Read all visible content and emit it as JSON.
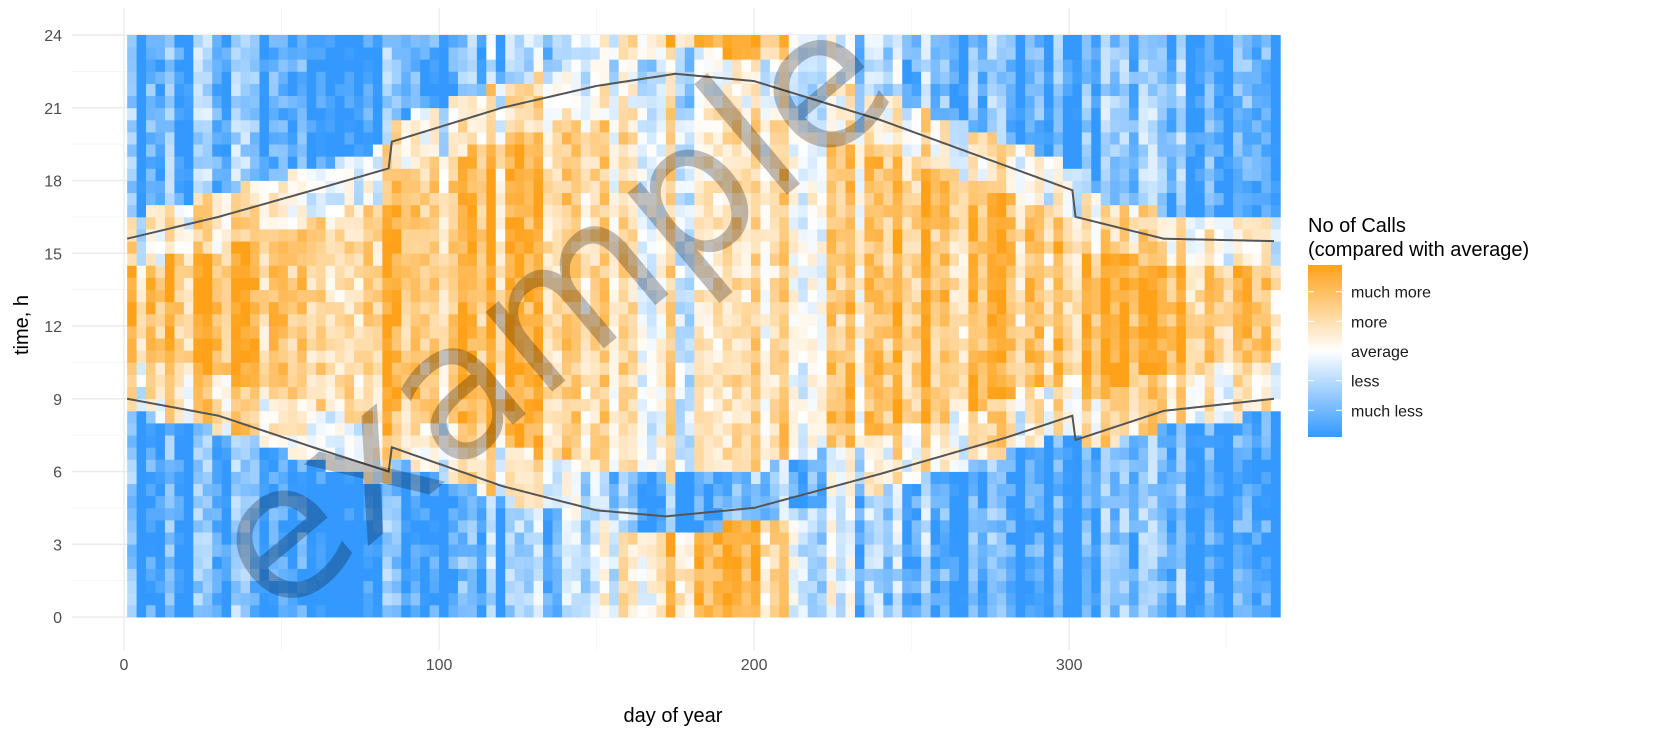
{
  "chart_data": {
    "type": "heatmap",
    "title": "",
    "xlabel": "day of year",
    "ylabel": "time, h",
    "xlim": [
      0,
      365
    ],
    "ylim": [
      0,
      24
    ],
    "x_ticks": [
      0,
      100,
      200,
      300
    ],
    "y_ticks": [
      0,
      3,
      6,
      9,
      12,
      15,
      18,
      21,
      24
    ],
    "grid": true,
    "colors": {
      "low": "#3399ff",
      "mid": "#ffffff",
      "high": "#ffa21a",
      "line": "#555555"
    },
    "legend": {
      "position": "right",
      "title_line1": "No of Calls",
      "title_line2": "(compared with average)",
      "levels": [
        "much more",
        "more",
        "average",
        "less",
        "much less"
      ],
      "level_values": [
        2,
        1,
        0,
        -1,
        -2
      ]
    },
    "watermark": "example",
    "sunrise_curve": {
      "day": [
        1,
        30,
        60,
        84,
        85,
        120,
        150,
        172,
        200,
        240,
        280,
        301,
        302,
        330,
        365
      ],
      "hour": [
        9.0,
        8.3,
        7.0,
        6.0,
        7.0,
        5.4,
        4.4,
        4.15,
        4.5,
        5.9,
        7.4,
        8.3,
        7.3,
        8.5,
        9.0
      ]
    },
    "sunset_curve": {
      "day": [
        1,
        30,
        60,
        84,
        85,
        120,
        150,
        175,
        200,
        240,
        280,
        301,
        302,
        330,
        365
      ],
      "hour": [
        15.6,
        16.5,
        17.6,
        18.5,
        19.6,
        21.0,
        21.9,
        22.4,
        22.1,
        20.5,
        18.6,
        17.6,
        16.5,
        15.6,
        15.5
      ]
    }
  }
}
